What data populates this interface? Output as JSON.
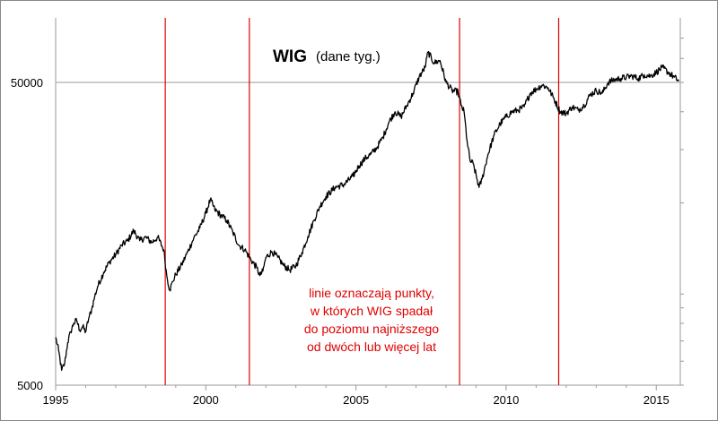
{
  "chart_data": {
    "type": "line",
    "title": "WIG",
    "subtitle": "(dane tyg.)",
    "xlabel": "",
    "ylabel": "",
    "xlim": [
      1995.0,
      2015.8
    ],
    "ylim": [
      5000,
      70000
    ],
    "y_scale": "log",
    "x_ticks": [
      1995,
      2000,
      2005,
      2010,
      2015
    ],
    "y_ticks": [
      5000,
      50000
    ],
    "y_tick_labels": [
      "5000",
      "50000"
    ],
    "grid": "horizontal line at 50000",
    "legend": "none",
    "series": [
      {
        "color": "#000000",
        "points": [
          [
            1995.0,
            7200
          ],
          [
            1995.1,
            6500
          ],
          [
            1995.2,
            5600
          ],
          [
            1995.3,
            5900
          ],
          [
            1995.4,
            6900
          ],
          [
            1995.5,
            7500
          ],
          [
            1995.6,
            8000
          ],
          [
            1995.7,
            8200
          ],
          [
            1995.8,
            7600
          ],
          [
            1995.9,
            7800
          ],
          [
            1996.0,
            7500
          ],
          [
            1996.1,
            8300
          ],
          [
            1996.2,
            8900
          ],
          [
            1996.3,
            9800
          ],
          [
            1996.4,
            10600
          ],
          [
            1996.6,
            11800
          ],
          [
            1996.8,
            12800
          ],
          [
            1997.0,
            13500
          ],
          [
            1997.2,
            14500
          ],
          [
            1997.4,
            15000
          ],
          [
            1997.6,
            16200
          ],
          [
            1997.8,
            15000
          ],
          [
            1998.0,
            15400
          ],
          [
            1998.2,
            14800
          ],
          [
            1998.4,
            15400
          ],
          [
            1998.6,
            14000
          ],
          [
            1998.7,
            11500
          ],
          [
            1998.8,
            10300
          ],
          [
            1998.9,
            11000
          ],
          [
            1999.0,
            11600
          ],
          [
            1999.2,
            12500
          ],
          [
            1999.4,
            13800
          ],
          [
            1999.6,
            15300
          ],
          [
            1999.8,
            16500
          ],
          [
            2000.0,
            18500
          ],
          [
            2000.15,
            20500
          ],
          [
            2000.3,
            19000
          ],
          [
            2000.5,
            18200
          ],
          [
            2000.7,
            17500
          ],
          [
            2000.9,
            16000
          ],
          [
            2001.1,
            14500
          ],
          [
            2001.3,
            14000
          ],
          [
            2001.5,
            13000
          ],
          [
            2001.7,
            12200
          ],
          [
            2001.8,
            11500
          ],
          [
            2001.9,
            11900
          ],
          [
            2002.0,
            13200
          ],
          [
            2002.2,
            13800
          ],
          [
            2002.4,
            13200
          ],
          [
            2002.6,
            12400
          ],
          [
            2002.8,
            12000
          ],
          [
            2003.0,
            12400
          ],
          [
            2003.2,
            13700
          ],
          [
            2003.4,
            15500
          ],
          [
            2003.6,
            17500
          ],
          [
            2003.8,
            19500
          ],
          [
            2004.0,
            21000
          ],
          [
            2004.3,
            22500
          ],
          [
            2004.6,
            23000
          ],
          [
            2004.9,
            24500
          ],
          [
            2005.1,
            26500
          ],
          [
            2005.3,
            28000
          ],
          [
            2005.5,
            29000
          ],
          [
            2005.7,
            30500
          ],
          [
            2005.9,
            33000
          ],
          [
            2006.1,
            37000
          ],
          [
            2006.3,
            40000
          ],
          [
            2006.5,
            38500
          ],
          [
            2006.7,
            42000
          ],
          [
            2006.9,
            46000
          ],
          [
            2007.1,
            52000
          ],
          [
            2007.3,
            56000
          ],
          [
            2007.4,
            63000
          ],
          [
            2007.6,
            58000
          ],
          [
            2007.8,
            59000
          ],
          [
            2008.0,
            50000
          ],
          [
            2008.2,
            47000
          ],
          [
            2008.4,
            46500
          ],
          [
            2008.5,
            42000
          ],
          [
            2008.6,
            40000
          ],
          [
            2008.7,
            32000
          ],
          [
            2008.8,
            27500
          ],
          [
            2008.9,
            27000
          ],
          [
            2009.1,
            22500
          ],
          [
            2009.2,
            24000
          ],
          [
            2009.4,
            29000
          ],
          [
            2009.6,
            33500
          ],
          [
            2009.8,
            36500
          ],
          [
            2010.0,
            38500
          ],
          [
            2010.2,
            40000
          ],
          [
            2010.4,
            40500
          ],
          [
            2010.6,
            41500
          ],
          [
            2010.8,
            46000
          ],
          [
            2011.0,
            47500
          ],
          [
            2011.2,
            49000
          ],
          [
            2011.4,
            48000
          ],
          [
            2011.6,
            44000
          ],
          [
            2011.8,
            40000
          ],
          [
            2012.0,
            39500
          ],
          [
            2012.2,
            41500
          ],
          [
            2012.4,
            40500
          ],
          [
            2012.6,
            42000
          ],
          [
            2012.8,
            45500
          ],
          [
            2013.0,
            47000
          ],
          [
            2013.2,
            46000
          ],
          [
            2013.4,
            50000
          ],
          [
            2013.6,
            51000
          ],
          [
            2013.8,
            51500
          ],
          [
            2014.0,
            52000
          ],
          [
            2014.2,
            52500
          ],
          [
            2014.4,
            51500
          ],
          [
            2014.6,
            53000
          ],
          [
            2014.8,
            52500
          ],
          [
            2015.0,
            54000
          ],
          [
            2015.2,
            56000
          ],
          [
            2015.4,
            54000
          ],
          [
            2015.6,
            52000
          ],
          [
            2015.75,
            50500
          ]
        ]
      }
    ],
    "vertical_lines": {
      "color": "#e00000",
      "x": [
        1998.65,
        2001.45,
        2008.45,
        2011.75
      ]
    },
    "annotation_lines": [
      "linie oznaczają punkty,",
      "w których WIG spadał",
      "do poziomu najniższego",
      "od dwóch lub więcej lat"
    ]
  }
}
